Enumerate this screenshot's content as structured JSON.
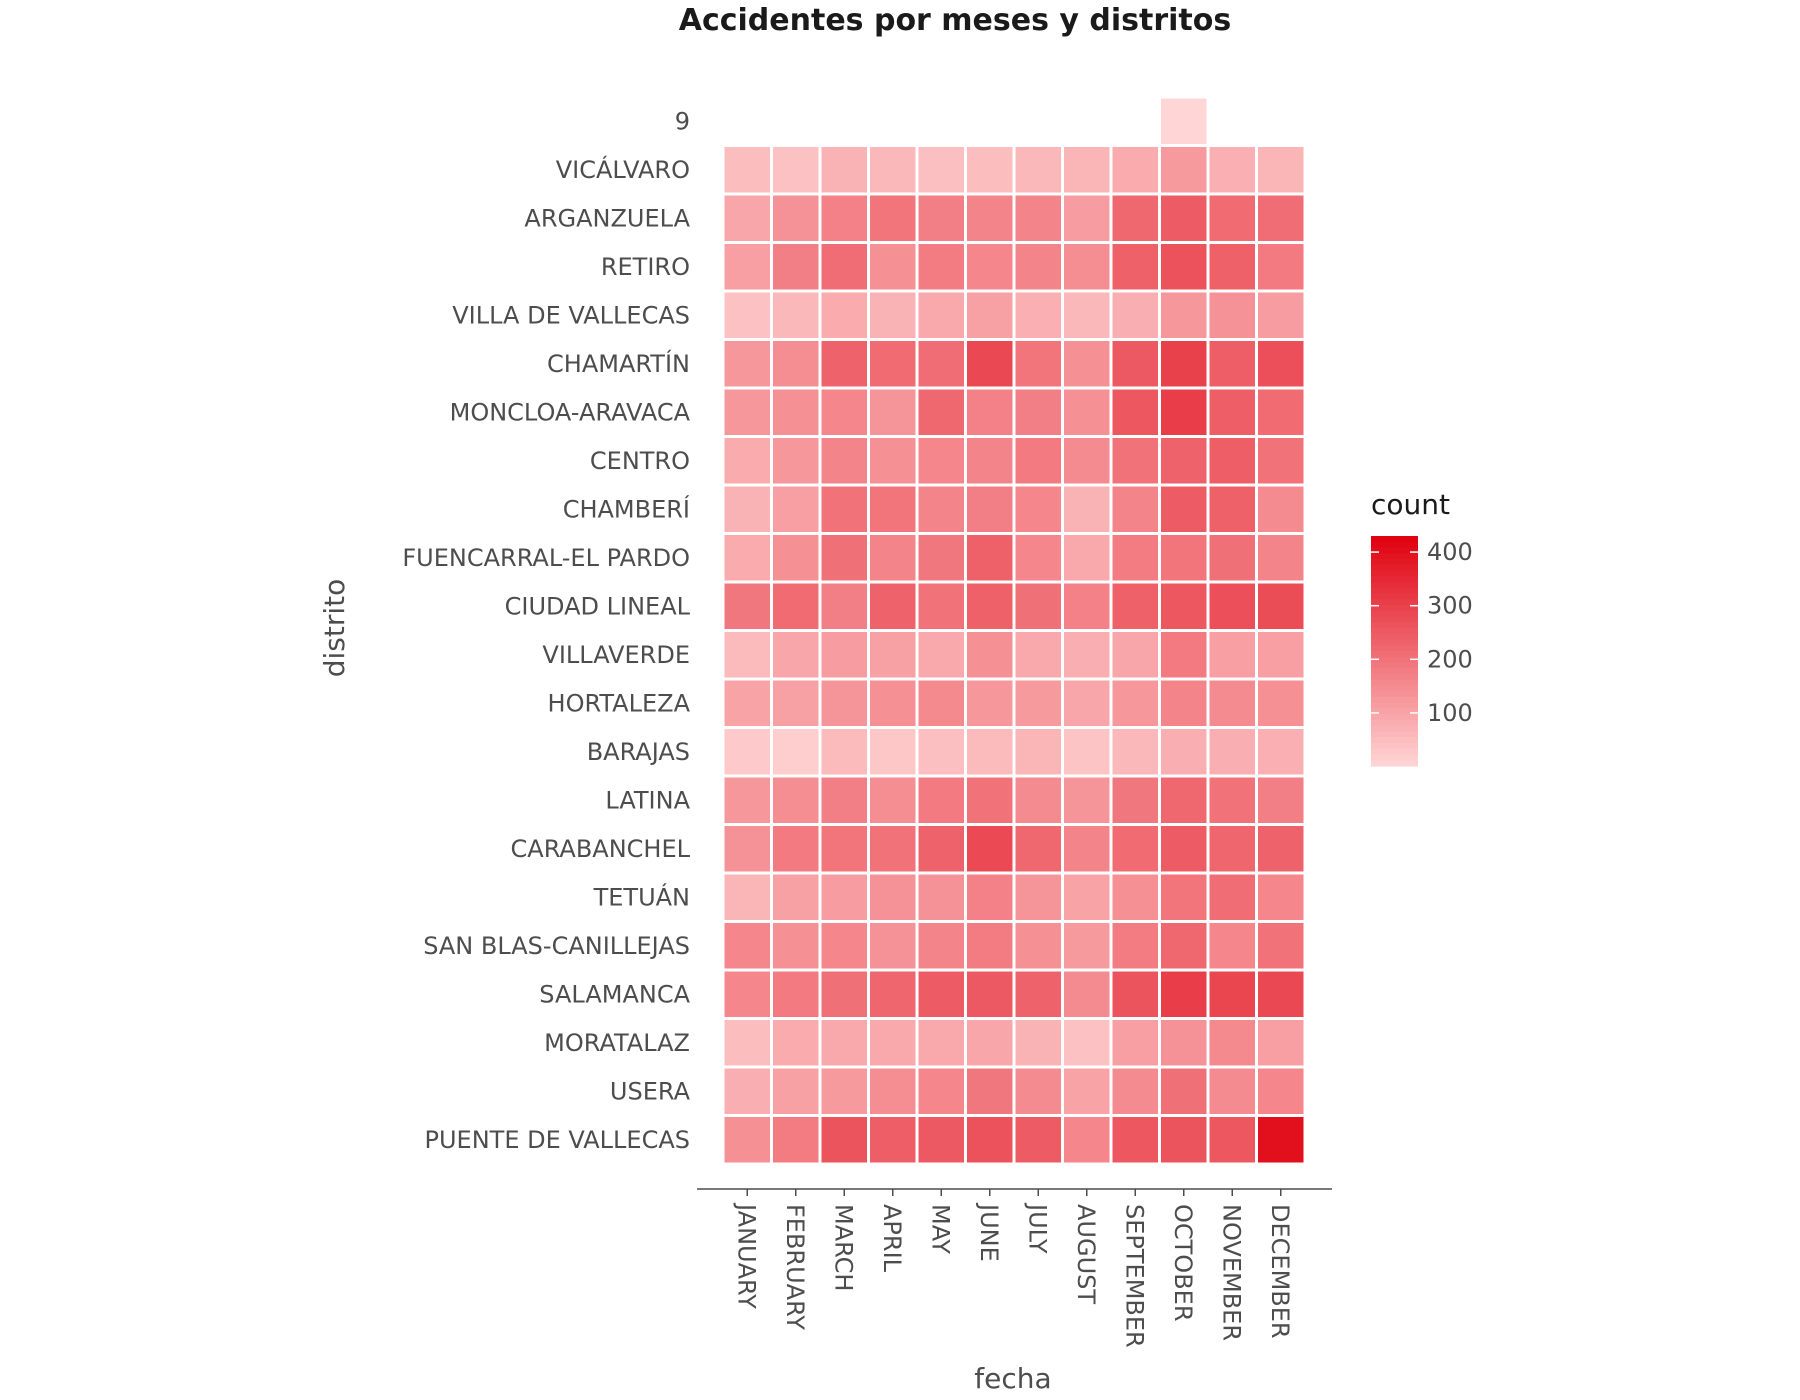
{
  "chart_data": {
    "type": "heatmap",
    "title": "Accidentes por meses y distritos",
    "xlabel": "fecha",
    "ylabel": "distrito",
    "x": [
      "JANUARY",
      "FEBRUARY",
      "MARCH",
      "APRIL",
      "MAY",
      "JUNE",
      "JULY",
      "AUGUST",
      "SEPTEMBER",
      "OCTOBER",
      "NOVEMBER",
      "DECEMBER"
    ],
    "y": [
      "9",
      "VICÁLVARO",
      "ARGANZUELA",
      "RETIRO",
      "VILLA DE VALLECAS",
      "CHAMARTÍN",
      "MONCLOA-ARAVACA",
      "CENTRO",
      "CHAMBERÍ",
      "FUENCARRAL-EL PARDO",
      "CIUDAD LINEAL",
      "VILLAVERDE",
      "HORTALEZA",
      "BARAJAS",
      "LATINA",
      "CARABANCHEL",
      "TETUÁN",
      "SAN BLAS-CANILLEJAS",
      "SALAMANCA",
      "MORATALAZ",
      "USERA",
      "PUENTE DE VALLECAS"
    ],
    "values": [
      [
        null,
        null,
        null,
        null,
        null,
        null,
        null,
        null,
        null,
        1,
        null,
        null
      ],
      [
        50,
        40,
        70,
        60,
        45,
        50,
        60,
        65,
        85,
        120,
        75,
        65
      ],
      [
        95,
        135,
        170,
        195,
        175,
        165,
        165,
        115,
        220,
        245,
        215,
        210
      ],
      [
        110,
        175,
        210,
        140,
        180,
        160,
        165,
        145,
        235,
        265,
        235,
        185
      ],
      [
        40,
        60,
        85,
        70,
        90,
        105,
        75,
        60,
        80,
        125,
        135,
        115
      ],
      [
        125,
        145,
        230,
        215,
        210,
        285,
        195,
        140,
        250,
        300,
        240,
        270
      ],
      [
        125,
        140,
        160,
        130,
        220,
        170,
        175,
        140,
        255,
        305,
        240,
        215
      ],
      [
        85,
        125,
        165,
        140,
        160,
        165,
        185,
        150,
        200,
        230,
        240,
        200
      ],
      [
        70,
        110,
        200,
        195,
        165,
        175,
        160,
        70,
        165,
        245,
        235,
        150
      ],
      [
        85,
        140,
        205,
        165,
        190,
        235,
        160,
        90,
        180,
        195,
        205,
        165
      ],
      [
        190,
        215,
        175,
        230,
        200,
        235,
        205,
        170,
        235,
        255,
        270,
        275
      ],
      [
        55,
        95,
        115,
        105,
        90,
        140,
        90,
        80,
        95,
        185,
        110,
        110
      ],
      [
        100,
        105,
        130,
        140,
        155,
        125,
        120,
        95,
        125,
        165,
        150,
        140
      ],
      [
        25,
        15,
        55,
        30,
        45,
        55,
        65,
        35,
        60,
        80,
        80,
        75
      ],
      [
        125,
        145,
        175,
        145,
        185,
        200,
        150,
        130,
        190,
        220,
        200,
        175
      ],
      [
        135,
        185,
        195,
        200,
        230,
        280,
        220,
        165,
        215,
        245,
        225,
        230
      ],
      [
        65,
        105,
        115,
        135,
        135,
        170,
        130,
        100,
        140,
        195,
        210,
        160
      ],
      [
        160,
        140,
        160,
        135,
        165,
        180,
        140,
        120,
        180,
        220,
        160,
        200
      ],
      [
        160,
        185,
        205,
        225,
        245,
        250,
        230,
        150,
        260,
        305,
        290,
        285
      ],
      [
        50,
        85,
        90,
        90,
        90,
        95,
        70,
        40,
        110,
        135,
        155,
        110
      ],
      [
        80,
        105,
        120,
        145,
        160,
        190,
        150,
        100,
        150,
        205,
        150,
        160
      ],
      [
        140,
        180,
        260,
        240,
        250,
        265,
        245,
        160,
        255,
        260,
        255,
        400
      ]
    ],
    "color_scale": {
      "low": "#ffd5d5",
      "high": "#e0000f",
      "domain": [
        1,
        430
      ]
    },
    "legend": {
      "title": "count",
      "ticks": [
        100,
        200,
        300,
        400
      ],
      "placement": "right"
    },
    "grid": false
  }
}
